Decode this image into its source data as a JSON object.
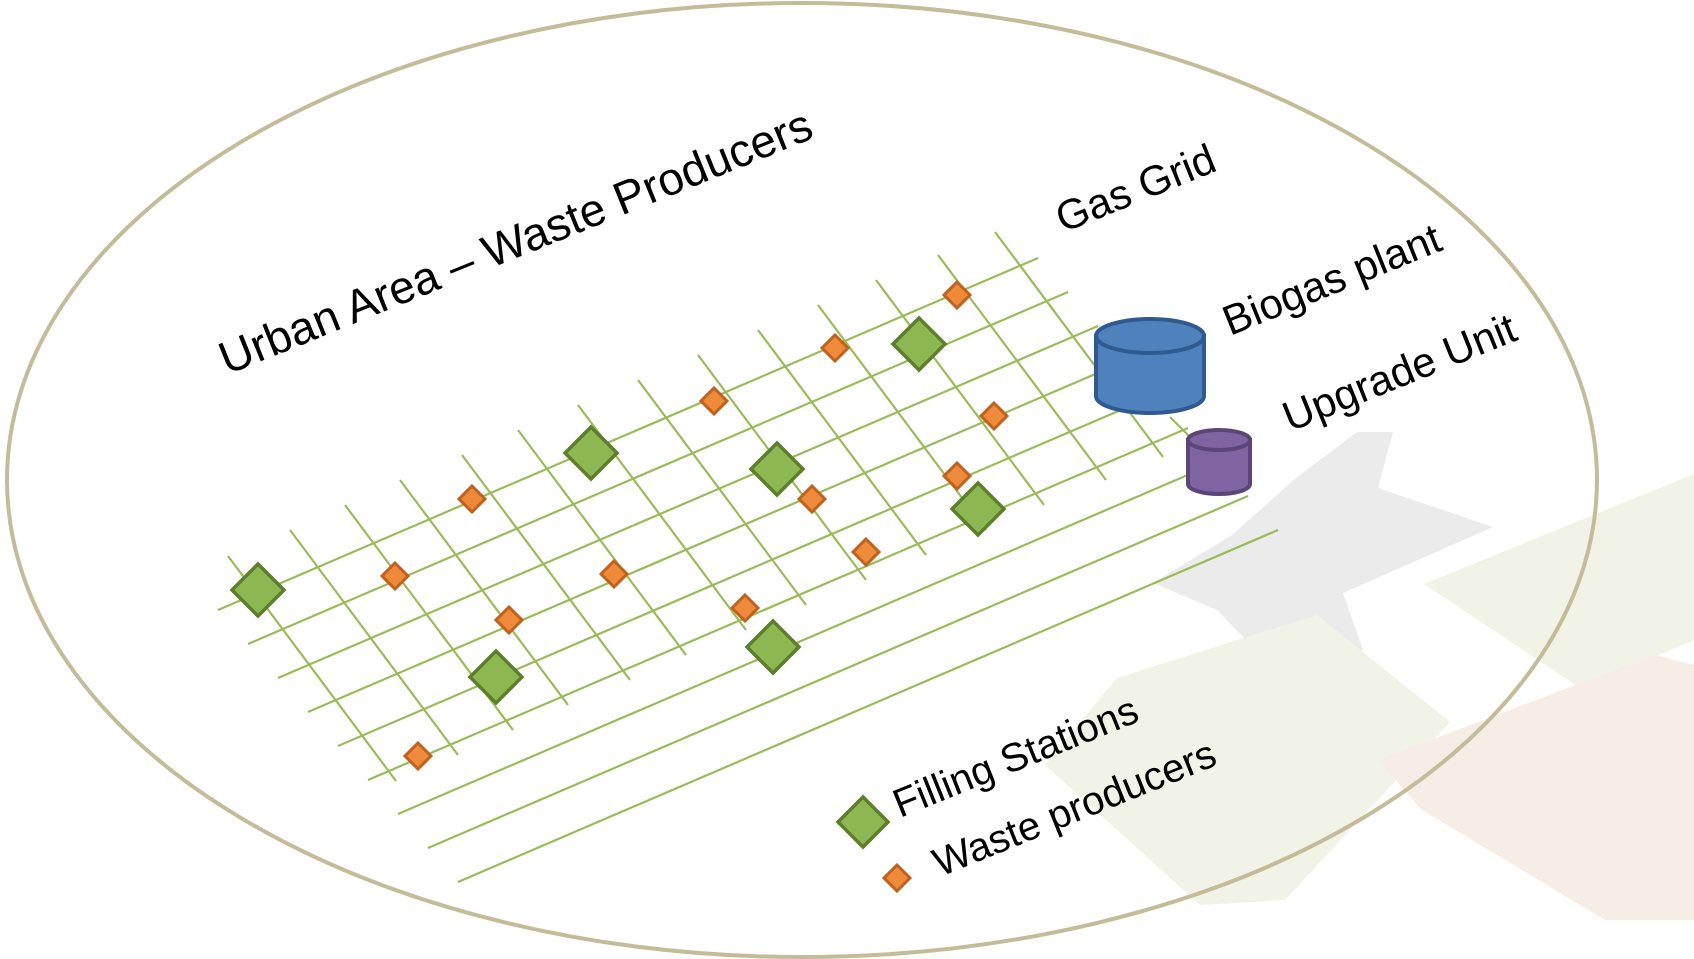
{
  "title": "Urban Area – Waste Producers",
  "components": {
    "gas_grid": "Gas Grid",
    "biogas_plant": "Biogas plant",
    "upgrade_unit": "Upgrade Unit"
  },
  "legend": {
    "filling_stations": "Filling Stations",
    "waste_producers": "Waste producers"
  },
  "colors": {
    "boundary": "#c4bc98",
    "grid": "#9bbb59",
    "filling_station_fill": "#8db851",
    "filling_station_stroke": "#5c7f2c",
    "waste_producer_fill": "#ee8a3a",
    "waste_producer_stroke": "#c0621d",
    "biogas_plant_fill": "#4f81bd",
    "biogas_plant_stroke": "#2e5a8f",
    "upgrade_unit_fill": "#8064a2",
    "upgrade_unit_stroke": "#5c4677",
    "background_shape_gray": "#ebebeb",
    "background_shape_green": "#f1f3e6",
    "background_shape_rose": "#f6ede7"
  }
}
